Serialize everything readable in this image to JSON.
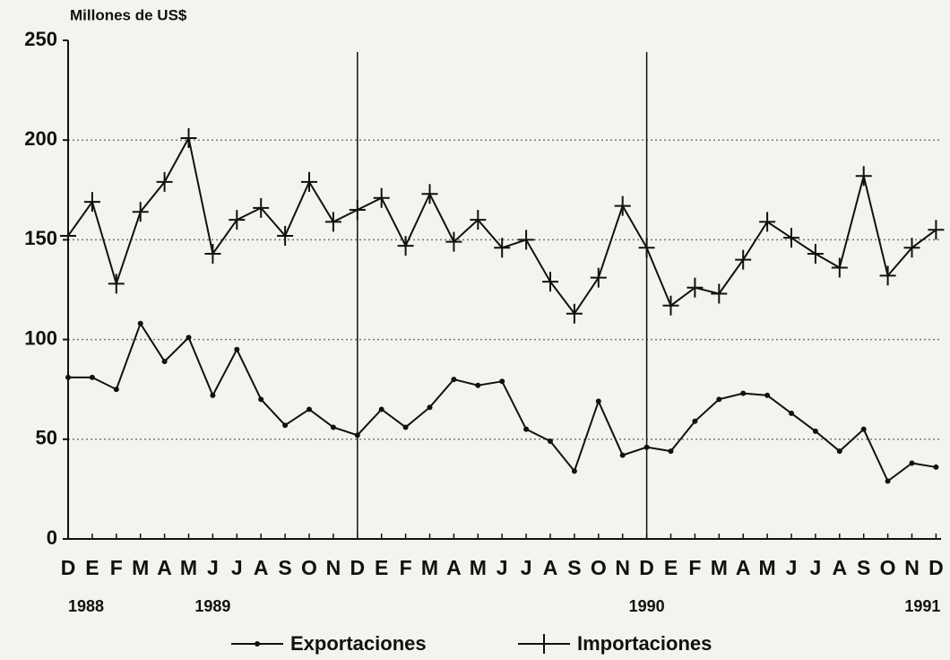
{
  "chart_data": {
    "type": "line",
    "y_label": "Millones de US$",
    "categories": [
      "D",
      "E",
      "F",
      "M",
      "A",
      "M",
      "J",
      "J",
      "A",
      "S",
      "O",
      "N",
      "D",
      "E",
      "F",
      "M",
      "A",
      "M",
      "J",
      "J",
      "A",
      "S",
      "O",
      "N",
      "D",
      "E",
      "F",
      "M",
      "A",
      "M",
      "J",
      "J",
      "A",
      "S",
      "O",
      "N",
      "D"
    ],
    "year_labels": [
      "1988",
      null,
      null,
      null,
      null,
      null,
      "1989",
      null,
      null,
      null,
      null,
      null,
      null,
      null,
      null,
      null,
      null,
      null,
      null,
      null,
      null,
      null,
      null,
      null,
      "1990",
      null,
      null,
      null,
      null,
      null,
      null,
      null,
      null,
      null,
      null,
      null,
      "1991"
    ],
    "series": [
      {
        "name": "Exportaciones",
        "color": "#111111",
        "marker": "dot",
        "values": [
          81,
          81,
          75,
          108,
          89,
          101,
          72,
          95,
          70,
          57,
          65,
          56,
          52,
          65,
          56,
          66,
          80,
          77,
          79,
          55,
          49,
          34,
          69,
          42,
          46,
          44,
          59,
          70,
          73,
          72,
          63,
          54,
          44,
          55,
          29,
          38,
          36
        ]
      },
      {
        "name": "Importaciones",
        "color": "#111111",
        "marker": "plus",
        "values": [
          152,
          169,
          128,
          164,
          179,
          201,
          143,
          160,
          166,
          152,
          179,
          159,
          165,
          171,
          147,
          173,
          149,
          160,
          146,
          150,
          129,
          113,
          131,
          167,
          146,
          117,
          126,
          123,
          140,
          159,
          151,
          143,
          136,
          182,
          132,
          146,
          155
        ]
      }
    ],
    "ylim": [
      0,
      250
    ],
    "yticks": [
      0,
      50,
      100,
      150,
      200,
      250
    ],
    "grid": true
  }
}
